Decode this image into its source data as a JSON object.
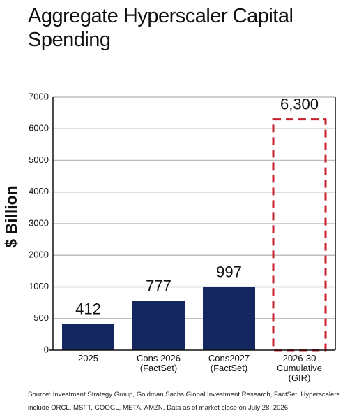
{
  "chart_data": {
    "type": "bar",
    "title": "Aggregate Hyperscaler Capital Spending",
    "y_label": "$ Billion",
    "categories": [
      [
        "2025"
      ],
      [
        "Cons 2026",
        "(FactSet)"
      ],
      [
        "Cons2027",
        "(FactSet)"
      ],
      [
        "2026-30",
        "Cumulative",
        "(GIR)"
      ]
    ],
    "values": [
      412,
      777,
      997,
      6300
    ],
    "value_labels": [
      "412",
      "777",
      "997",
      "6,300"
    ],
    "dashed": [
      false,
      false,
      false,
      true
    ],
    "color": "#14275e",
    "dashed_color": "#c8202c",
    "ylim": [
      0,
      7000
    ],
    "yticks": [
      0,
      500,
      1000,
      2000,
      3000,
      4000,
      5000,
      6000,
      7000
    ],
    "grid": true,
    "source": "Source: Investment Strategy Group, Goldman Sachs Global Investment Research, FactSet. Hyperscalers include ORCL, MSFT, GOOGL, META, AMZN. Data as of market close on July 28, 2026"
  }
}
